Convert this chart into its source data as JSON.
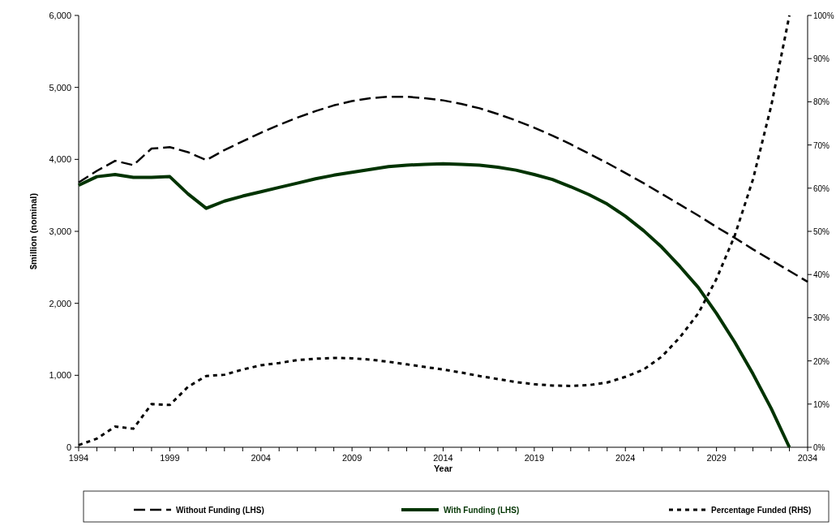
{
  "chart_data": {
    "type": "line",
    "xlabel": "Year",
    "ylabel": "$million (nominal)",
    "x": [
      1994,
      1995,
      1996,
      1997,
      1998,
      1999,
      2000,
      2001,
      2002,
      2003,
      2004,
      2005,
      2006,
      2007,
      2008,
      2009,
      2010,
      2011,
      2012,
      2013,
      2014,
      2015,
      2016,
      2017,
      2018,
      2019,
      2020,
      2021,
      2022,
      2023,
      2024,
      2025,
      2026,
      2027,
      2028,
      2029,
      2030,
      2031,
      2032,
      2033,
      2034
    ],
    "xlim": [
      1994,
      2034
    ],
    "xticks": [
      1994,
      {
        "value": 1995,
        "label": null
      },
      {
        "value": 1996,
        "label": null
      },
      {
        "value": 1997,
        "label": null
      },
      {
        "value": 1998,
        "label": null
      },
      1999,
      {
        "value": 2000,
        "label": null
      },
      {
        "value": 2001,
        "label": null
      },
      {
        "value": 2002,
        "label": null
      },
      {
        "value": 2003,
        "label": null
      },
      2004,
      {
        "value": 2005,
        "label": null
      },
      {
        "value": 2006,
        "label": null
      },
      {
        "value": 2007,
        "label": null
      },
      {
        "value": 2008,
        "label": null
      },
      2009,
      {
        "value": 2010,
        "label": null
      },
      {
        "value": 2011,
        "label": null
      },
      {
        "value": 2012,
        "label": null
      },
      {
        "value": 2013,
        "label": null
      },
      2014,
      {
        "value": 2015,
        "label": null
      },
      {
        "value": 2016,
        "label": null
      },
      {
        "value": 2017,
        "label": null
      },
      {
        "value": 2018,
        "label": null
      },
      2019,
      {
        "value": 2020,
        "label": null
      },
      {
        "value": 2021,
        "label": null
      },
      {
        "value": 2022,
        "label": null
      },
      {
        "value": 2023,
        "label": null
      },
      2024,
      {
        "value": 2025,
        "label": null
      },
      {
        "value": 2026,
        "label": null
      },
      {
        "value": 2027,
        "label": null
      },
      {
        "value": 2028,
        "label": null
      },
      2029,
      {
        "value": 2030,
        "label": null
      },
      {
        "value": 2031,
        "label": null
      },
      {
        "value": 2032,
        "label": null
      },
      {
        "value": 2033,
        "label": null
      },
      2034
    ],
    "ylim": [
      0,
      6000
    ],
    "yticks": [
      {
        "value": 0,
        "label": "0"
      },
      {
        "value": 1000,
        "label": "1,000"
      },
      {
        "value": 2000,
        "label": "2,000"
      },
      {
        "value": 3000,
        "label": "3,000"
      },
      {
        "value": 4000,
        "label": "4,000"
      },
      {
        "value": 5000,
        "label": "5,000"
      },
      {
        "value": 6000,
        "label": "6,000"
      }
    ],
    "y2lim": [
      0,
      100
    ],
    "y2ticks": [
      {
        "value": 0,
        "label": "0%"
      },
      {
        "value": 10,
        "label": "10%"
      },
      {
        "value": 20,
        "label": "20%"
      },
      {
        "value": 30,
        "label": "30%"
      },
      {
        "value": 40,
        "label": "40%"
      },
      {
        "value": 50,
        "label": "50%"
      },
      {
        "value": 60,
        "label": "60%"
      },
      {
        "value": 70,
        "label": "70%"
      },
      {
        "value": 80,
        "label": "80%"
      },
      {
        "value": 90,
        "label": "90%"
      },
      {
        "value": 100,
        "label": "100%"
      }
    ],
    "grid": false,
    "legend": "bottom",
    "series": [
      {
        "name": "Without Funding (LHS)",
        "color": "#000000",
        "line_style": "dashed",
        "values": [
          3680,
          3840,
          3980,
          3920,
          4150,
          4170,
          4100,
          3990,
          4130,
          4250,
          4370,
          4480,
          4580,
          4670,
          4750,
          4810,
          4850,
          4870,
          4870,
          4850,
          4820,
          4770,
          4710,
          4630,
          4540,
          4440,
          4330,
          4210,
          4080,
          3950,
          3810,
          3670,
          3520,
          3370,
          3220,
          3060,
          2910,
          2750,
          2600,
          2450,
          2300
        ]
      },
      {
        "name": "With Funding (LHS)",
        "color": "#003300",
        "line_style": "solid",
        "values": [
          3640,
          3760,
          3790,
          3750,
          3750,
          3760,
          3520,
          3320,
          3420,
          3490,
          3550,
          3610,
          3670,
          3730,
          3780,
          3820,
          3860,
          3900,
          3920,
          3930,
          3940,
          3930,
          3920,
          3890,
          3850,
          3790,
          3720,
          3620,
          3510,
          3380,
          3210,
          3010,
          2780,
          2510,
          2220,
          1860,
          1460,
          1020,
          540,
          0,
          null
        ]
      },
      {
        "name": "Percentage Funded (RHS)",
        "color": "#000000",
        "line_style": "dotted",
        "axis": "y2",
        "values": [
          0.5,
          2,
          4.8,
          4.3,
          10,
          9.8,
          14,
          16.5,
          16.8,
          18,
          19,
          19.5,
          20.2,
          20.5,
          20.7,
          20.6,
          20.3,
          19.8,
          19.2,
          18.6,
          18,
          17.3,
          16.5,
          15.8,
          15.1,
          14.6,
          14.3,
          14.2,
          14.4,
          15,
          16.3,
          18,
          21,
          25.5,
          31,
          39,
          49,
          62,
          79,
          100,
          null
        ]
      }
    ]
  }
}
